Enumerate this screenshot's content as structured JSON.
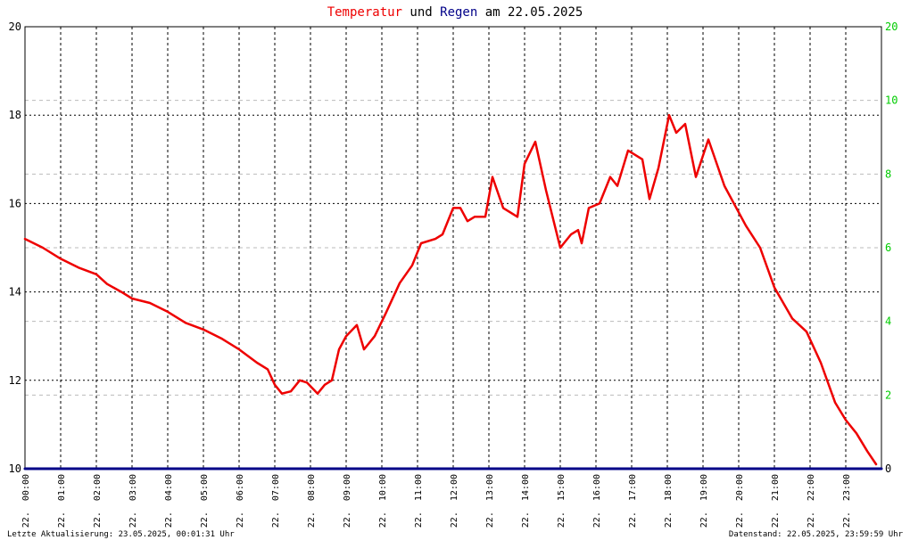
{
  "title": {
    "word1": "Temperatur",
    "word2": " und ",
    "word3": "Regen",
    "word4": " am 22.05.2025"
  },
  "footer": {
    "left": "Letzte Aktualisierung: 23.05.2025, 00:01:31 Uhr",
    "right": "Datenstand: 22.05.2025, 23:59:59 Uhr"
  },
  "colors": {
    "temperature": "#ee0000",
    "rain": "#000088",
    "right_ticks": "#00cc00",
    "title_text": "#000000",
    "grid": "#000000"
  },
  "chart_data": {
    "type": "line",
    "x_label_prefix": "22.",
    "x_ticks": [
      "00:00",
      "01:00",
      "02:00",
      "03:00",
      "04:00",
      "05:00",
      "06:00",
      "07:00",
      "08:00",
      "09:00",
      "10:00",
      "11:00",
      "12:00",
      "13:00",
      "14:00",
      "15:00",
      "16:00",
      "17:00",
      "18:00",
      "19:00",
      "20:00",
      "21:00",
      "22:00",
      "23:00"
    ],
    "x_range_hours": [
      0,
      24
    ],
    "y_left": {
      "range": [
        10,
        20
      ],
      "ticks": [
        "10",
        "12",
        "14",
        "16",
        "18",
        "20"
      ]
    },
    "y_right": {
      "range": [
        0,
        12
      ],
      "ticks": [
        "0",
        "2",
        "4",
        "6",
        "8",
        "10"
      ],
      "top_label": "20"
    },
    "grid": true,
    "series": [
      {
        "name": "Temperatur",
        "axis": "left",
        "points": [
          [
            0.0,
            15.2
          ],
          [
            0.5,
            15.0
          ],
          [
            1.0,
            14.75
          ],
          [
            1.5,
            14.55
          ],
          [
            2.0,
            14.4
          ],
          [
            2.3,
            14.18
          ],
          [
            2.7,
            14.0
          ],
          [
            3.0,
            13.85
          ],
          [
            3.5,
            13.75
          ],
          [
            4.0,
            13.55
          ],
          [
            4.5,
            13.3
          ],
          [
            5.0,
            13.15
          ],
          [
            5.5,
            12.95
          ],
          [
            6.0,
            12.7
          ],
          [
            6.5,
            12.4
          ],
          [
            6.8,
            12.25
          ],
          [
            7.0,
            11.9
          ],
          [
            7.2,
            11.7
          ],
          [
            7.45,
            11.75
          ],
          [
            7.7,
            12.0
          ],
          [
            7.9,
            11.95
          ],
          [
            8.2,
            11.7
          ],
          [
            8.4,
            11.9
          ],
          [
            8.6,
            12.0
          ],
          [
            8.8,
            12.7
          ],
          [
            9.0,
            13.0
          ],
          [
            9.3,
            13.25
          ],
          [
            9.5,
            12.7
          ],
          [
            9.8,
            13.0
          ],
          [
            10.1,
            13.5
          ],
          [
            10.5,
            14.2
          ],
          [
            10.85,
            14.6
          ],
          [
            11.1,
            15.1
          ],
          [
            11.5,
            15.2
          ],
          [
            11.7,
            15.3
          ],
          [
            12.0,
            15.9
          ],
          [
            12.2,
            15.9
          ],
          [
            12.4,
            15.6
          ],
          [
            12.6,
            15.7
          ],
          [
            12.9,
            15.7
          ],
          [
            13.1,
            16.6
          ],
          [
            13.4,
            15.9
          ],
          [
            13.8,
            15.7
          ],
          [
            14.0,
            16.9
          ],
          [
            14.3,
            17.4
          ],
          [
            14.6,
            16.3
          ],
          [
            15.0,
            15.0
          ],
          [
            15.3,
            15.3
          ],
          [
            15.5,
            15.4
          ],
          [
            15.6,
            15.1
          ],
          [
            15.8,
            15.9
          ],
          [
            16.1,
            16.0
          ],
          [
            16.4,
            16.6
          ],
          [
            16.6,
            16.4
          ],
          [
            16.9,
            17.2
          ],
          [
            17.3,
            17.0
          ],
          [
            17.5,
            16.1
          ],
          [
            17.75,
            16.8
          ],
          [
            18.05,
            18.0
          ],
          [
            18.25,
            17.6
          ],
          [
            18.5,
            17.8
          ],
          [
            18.8,
            16.6
          ],
          [
            19.15,
            17.45
          ],
          [
            19.6,
            16.4
          ],
          [
            20.2,
            15.5
          ],
          [
            20.6,
            15.0
          ],
          [
            21.0,
            14.1
          ],
          [
            21.5,
            13.4
          ],
          [
            21.9,
            13.1
          ],
          [
            22.3,
            12.4
          ],
          [
            22.7,
            11.5
          ],
          [
            23.0,
            11.1
          ],
          [
            23.3,
            10.8
          ],
          [
            23.6,
            10.4
          ],
          [
            23.85,
            10.1
          ]
        ]
      },
      {
        "name": "Regen",
        "axis": "right",
        "points": [
          [
            0.0,
            0
          ],
          [
            24.0,
            0
          ]
        ]
      }
    ]
  }
}
